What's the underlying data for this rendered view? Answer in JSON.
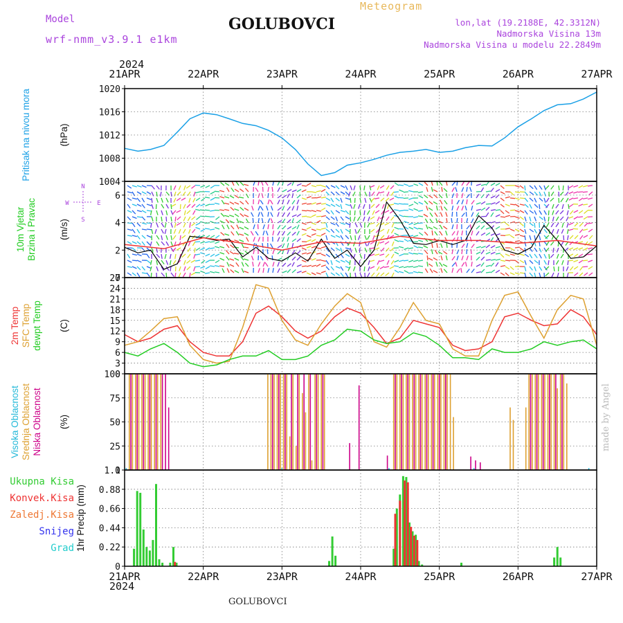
{
  "header": {
    "model_label": "Model",
    "model_name": "wrf-nmm_v3.9.1 e1km",
    "station": "GOLUBOVCI",
    "chart_kind": "Meteogram",
    "lonlat": "lon,lat (19.2188E, 42.3312N)",
    "elevation": "Nadmorska Visina 13m",
    "model_elevation": "Nadmorska Visina u modelu 22.2849m",
    "footer_station": "GOLUBOVCI",
    "credit": "made by Angel",
    "year": "2024"
  },
  "colors": {
    "pressure": "#1aa0e6",
    "wind_green": "#22cc22",
    "wind_speed": "#000000",
    "temp2m": "#ee3333",
    "sfc": "#dda030",
    "dewpt": "#22cc22",
    "cloud_high": "#22b8d8",
    "cloud_mid": "#dda030",
    "cloud_low": "#cc0088",
    "rain_total": "#33cc33",
    "rain_conv": "#ee3333",
    "frz": "#ee7733",
    "snow": "#3333ee",
    "grad": "#22cccc",
    "compass": "#aa44dd",
    "grid": "#777777"
  },
  "chart_data": {
    "x_ticks": [
      "21APR",
      "22APR",
      "23APR",
      "24APR",
      "25APR",
      "26APR",
      "27APR"
    ],
    "x_range_days": [
      0,
      6
    ],
    "panels": [
      {
        "id": "pressure",
        "type": "line",
        "ylabel_colored": [
          "Pritisak na nivou mora"
        ],
        "unit": "(hPa)",
        "ylim": [
          1004,
          1020
        ],
        "yticks": [
          "1004",
          "1008",
          "1012",
          "1016",
          "1020"
        ],
        "grid": true,
        "series": [
          {
            "key": "pressure",
            "x": [
              0,
              0.17,
              0.33,
              0.5,
              0.67,
              0.83,
              1.0,
              1.17,
              1.33,
              1.5,
              1.67,
              1.83,
              2.0,
              2.17,
              2.33,
              2.5,
              2.67,
              2.83,
              3.0,
              3.17,
              3.33,
              3.5,
              3.67,
              3.83,
              4.0,
              4.17,
              4.33,
              4.5,
              4.67,
              4.83,
              5.0,
              5.17,
              5.33,
              5.5,
              5.67,
              5.83,
              6.0
            ],
            "y": [
              1009.7,
              1009.2,
              1009.5,
              1010.2,
              1012.5,
              1014.8,
              1015.8,
              1015.5,
              1014.8,
              1014.0,
              1013.6,
              1012.8,
              1011.5,
              1009.5,
              1007.0,
              1005.0,
              1005.5,
              1006.8,
              1007.2,
              1007.8,
              1008.5,
              1009.0,
              1009.2,
              1009.5,
              1009.0,
              1009.2,
              1009.8,
              1010.2,
              1010.1,
              1011.5,
              1013.4,
              1014.8,
              1016.2,
              1017.2,
              1017.4,
              1018.2,
              1019.4
            ]
          }
        ]
      },
      {
        "id": "wind",
        "type": "line",
        "ylabel_colored": [
          "10m Vjetar",
          "Brzina i Pravac"
        ],
        "unit": "(m/s)",
        "ylim": [
          0,
          7
        ],
        "yticks": [
          "0",
          "2",
          "4",
          "6"
        ],
        "grid": true,
        "compass": {
          "n": "N",
          "s": "S",
          "e": "E",
          "w": "W"
        },
        "series": [
          {
            "key": "wind_speed",
            "x": [
              0,
              0.17,
              0.33,
              0.5,
              0.67,
              0.83,
              1.0,
              1.17,
              1.33,
              1.5,
              1.67,
              1.83,
              2.0,
              2.17,
              2.33,
              2.5,
              2.67,
              2.83,
              3.0,
              3.17,
              3.33,
              3.5,
              3.67,
              3.83,
              4.0,
              4.17,
              4.33,
              4.5,
              4.67,
              4.83,
              5.0,
              5.17,
              5.33,
              5.5,
              5.67,
              5.83,
              6.0
            ],
            "y": [
              2.2,
              1.8,
              2.0,
              0.6,
              1.0,
              3.0,
              2.9,
              2.7,
              2.8,
              1.5,
              2.2,
              1.4,
              1.2,
              1.8,
              1.2,
              2.8,
              1.4,
              2.0,
              0.8,
              2.0,
              5.5,
              4.2,
              2.5,
              2.4,
              2.7,
              2.4,
              2.7,
              4.5,
              3.6,
              2.0,
              1.7,
              2.2,
              3.8,
              2.7,
              1.4,
              1.5,
              2.3
            ]
          },
          {
            "key": "temp2m",
            "x": [
              0,
              0.5,
              1.0,
              1.5,
              2.0,
              2.5,
              3.0,
              3.5,
              4.0,
              4.5,
              5.0,
              5.5,
              6.0
            ],
            "y": [
              2.4,
              2.1,
              2.9,
              2.5,
              2.0,
              2.6,
              2.5,
              3.0,
              2.7,
              2.7,
              2.5,
              2.7,
              2.3
            ]
          }
        ]
      },
      {
        "id": "temp",
        "type": "line",
        "ylabel_colored": [
          "2m Temp",
          "SFC Temp",
          "dewpt Temp"
        ],
        "unit": "(C)",
        "ylim": [
          0,
          27
        ],
        "yticks": [
          "0",
          "3",
          "6",
          "9",
          "12",
          "15",
          "18",
          "21",
          "24",
          "27"
        ],
        "grid": true,
        "series": [
          {
            "key": "temp2m",
            "x": [
              0,
              0.17,
              0.33,
              0.5,
              0.67,
              0.83,
              1.0,
              1.17,
              1.33,
              1.5,
              1.67,
              1.83,
              2.0,
              2.17,
              2.33,
              2.5,
              2.67,
              2.83,
              3.0,
              3.17,
              3.33,
              3.5,
              3.67,
              3.83,
              4.0,
              4.17,
              4.33,
              4.5,
              4.67,
              4.83,
              5.0,
              5.17,
              5.33,
              5.5,
              5.67,
              5.83,
              6.0
            ],
            "y": [
              11,
              9,
              10,
              12.5,
              13.5,
              9,
              6,
              5,
              5,
              9,
              17,
              19,
              16,
              12,
              10,
              12,
              16,
              18.5,
              17,
              13,
              8.5,
              10,
              15,
              14,
              13,
              8,
              6.5,
              7,
              9,
              16,
              17,
              15,
              13.5,
              14,
              18,
              16,
              11
            ]
          },
          {
            "key": "sfc",
            "x": [
              0,
              0.17,
              0.33,
              0.5,
              0.67,
              0.83,
              1.0,
              1.17,
              1.33,
              1.5,
              1.67,
              1.83,
              2.0,
              2.17,
              2.33,
              2.5,
              2.67,
              2.83,
              3.0,
              3.17,
              3.33,
              3.5,
              3.67,
              3.83,
              4.0,
              4.17,
              4.33,
              4.5,
              4.67,
              4.83,
              5.0,
              5.17,
              5.33,
              5.5,
              5.67,
              5.83,
              6.0
            ],
            "y": [
              8,
              9,
              12,
              15.5,
              16,
              8,
              4,
              3,
              3.5,
              13,
              25,
              24,
              15,
              9.5,
              8,
              14,
              19,
              22.5,
              20,
              9,
              7.5,
              13,
              20,
              15,
              14,
              7,
              5,
              5,
              15,
              22,
              23,
              16,
              10,
              18,
              22,
              21,
              8
            ]
          },
          {
            "key": "dewpt",
            "x": [
              0,
              0.17,
              0.33,
              0.5,
              0.67,
              0.83,
              1.0,
              1.17,
              1.33,
              1.5,
              1.67,
              1.83,
              2.0,
              2.17,
              2.33,
              2.5,
              2.67,
              2.83,
              3.0,
              3.17,
              3.33,
              3.5,
              3.67,
              3.83,
              4.0,
              4.17,
              4.33,
              4.5,
              4.67,
              4.83,
              5.0,
              5.17,
              5.33,
              5.5,
              5.67,
              5.83,
              6.0
            ],
            "y": [
              6,
              5,
              7,
              8.5,
              6,
              3,
              2,
              2.5,
              4,
              5,
              5,
              6.5,
              4,
              4,
              5,
              8,
              9.5,
              12.5,
              12,
              9.5,
              8.5,
              9,
              11.5,
              10.5,
              8,
              4.5,
              4.5,
              4,
              7,
              6,
              6,
              7,
              9,
              8,
              9,
              9.5,
              7
            ]
          }
        ]
      },
      {
        "id": "clouds",
        "type": "bar",
        "ylabel_colored": [
          "Visoka Oblacnost",
          "Srednja Oblacnost",
          "Niska Oblacnost"
        ],
        "unit": "(%)",
        "ylim": [
          0,
          100
        ],
        "yticks": [
          "0",
          "25",
          "50",
          "75",
          "100"
        ],
        "grid": true,
        "series": [
          {
            "key": "cloud_mid",
            "x": [
              0.06,
              0.1,
              0.14,
              0.18,
              0.22,
              0.26,
              0.3,
              0.34,
              0.38,
              0.42,
              0.46,
              1.82,
              1.86,
              1.9,
              1.94,
              1.98,
              2.02,
              2.06,
              2.1,
              2.14,
              2.18,
              2.22,
              2.26,
              2.3,
              2.34,
              2.38,
              2.42,
              2.46,
              2.5,
              2.54,
              3.42,
              3.46,
              3.5,
              3.54,
              3.58,
              3.62,
              3.66,
              3.7,
              3.74,
              3.78,
              3.82,
              3.86,
              3.9,
              3.94,
              3.98,
              4.02,
              4.06,
              4.1,
              4.14,
              4.18,
              4.9,
              4.94,
              5.1,
              5.14,
              5.18,
              5.22,
              5.26,
              5.3,
              5.34,
              5.38,
              5.42,
              5.46,
              5.5,
              5.54,
              5.58,
              5.62
            ],
            "y": [
              100,
              100,
              100,
              100,
              100,
              100,
              100,
              100,
              100,
              100,
              100,
              100,
              100,
              100,
              100,
              100,
              100,
              100,
              35,
              100,
              25,
              100,
              80,
              60,
              100,
              10,
              100,
              100,
              100,
              100,
              100,
              100,
              100,
              100,
              100,
              100,
              100,
              100,
              100,
              100,
              100,
              100,
              100,
              100,
              100,
              100,
              100,
              100,
              100,
              55,
              65,
              52,
              65,
              100,
              100,
              100,
              100,
              100,
              100,
              100,
              100,
              100,
              85,
              100,
              100,
              90
            ]
          },
          {
            "key": "cloud_low",
            "x": [
              0.08,
              0.16,
              0.24,
              0.32,
              0.4,
              0.48,
              0.52,
              0.56,
              1.88,
              1.96,
              2.04,
              2.12,
              2.2,
              2.28,
              2.36,
              2.44,
              2.52,
              2.86,
              2.98,
              3.34,
              3.44,
              3.52,
              3.6,
              3.68,
              3.76,
              3.84,
              3.92,
              4.0,
              4.08,
              4.4,
              4.46,
              4.52,
              5.16,
              5.24,
              5.32,
              5.4,
              5.48,
              5.56
            ],
            "y": [
              100,
              100,
              100,
              100,
              100,
              100,
              100,
              65,
              100,
              100,
              100,
              100,
              100,
              100,
              100,
              100,
              100,
              28,
              88,
              15,
              100,
              100,
              100,
              100,
              100,
              100,
              100,
              100,
              100,
              14,
              10,
              8,
              100,
              100,
              100,
              100,
              100,
              100
            ]
          },
          {
            "key": "cloud_high",
            "x": [
              0.02,
              2.0,
              3.36,
              4.44,
              5.9
            ],
            "y": [
              2,
              2,
              2,
              2,
              2
            ]
          }
        ]
      },
      {
        "id": "precip",
        "type": "bar",
        "ylabel_plain": "1hr Precip (mm)",
        "ylim": [
          0,
          1.1
        ],
        "yticks": [
          "0",
          "0.22",
          "0.44",
          "0.66",
          "0.88",
          "1.1"
        ],
        "grid": true,
        "legend": [
          {
            "key": "rain_total",
            "label": "Ukupna Kisa"
          },
          {
            "key": "rain_conv",
            "label": "Konvek.Kisa"
          },
          {
            "key": "frz",
            "label": "Zaledj.Kisa"
          },
          {
            "key": "snow",
            "label": "Snijeg"
          },
          {
            "key": "grad",
            "label": "Grad"
          }
        ],
        "series": [
          {
            "key": "rain_total",
            "x": [
              0.12,
              0.16,
              0.2,
              0.24,
              0.28,
              0.32,
              0.36,
              0.4,
              0.44,
              0.48,
              0.58,
              0.62,
              0.66,
              2.6,
              2.64,
              2.68,
              3.42,
              3.46,
              3.5,
              3.54,
              3.58,
              3.62,
              3.66,
              3.7,
              3.74,
              3.78,
              4.28,
              5.46,
              5.5,
              5.54
            ],
            "y": [
              0.2,
              0.86,
              0.84,
              0.42,
              0.22,
              0.18,
              0.3,
              0.94,
              0.08,
              0.04,
              0.04,
              0.22,
              0.04,
              0.06,
              0.34,
              0.12,
              0.2,
              0.66,
              0.82,
              1.03,
              1.02,
              0.5,
              0.4,
              0.36,
              0.06,
              0.02,
              0.04,
              0.1,
              0.22,
              0.1
            ]
          },
          {
            "key": "rain_conv",
            "x": [
              0.64,
              3.44,
              3.5,
              3.56,
              3.6,
              3.64,
              3.68,
              3.72
            ],
            "y": [
              0.05,
              0.6,
              0.75,
              0.98,
              0.96,
              0.45,
              0.35,
              0.3
            ]
          }
        ]
      }
    ]
  }
}
